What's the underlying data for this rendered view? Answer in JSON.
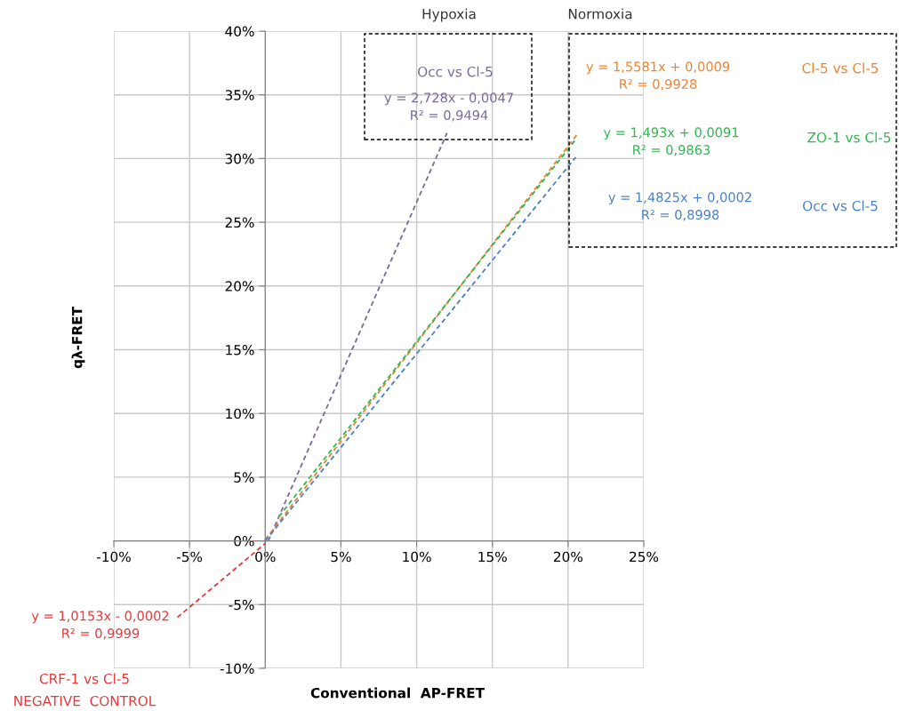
{
  "chart_data": {
    "type": "line",
    "xlabel": "Conventional  AP-FRET",
    "ylabel": "qλ-FRET",
    "xlim": [
      -10,
      25
    ],
    "ylim": [
      -10,
      40
    ],
    "xticks": [
      {
        "value": -10,
        "label": "-10%"
      },
      {
        "value": -5,
        "label": "-5%"
      },
      {
        "value": 0,
        "label": "0%"
      },
      {
        "value": 5,
        "label": "5%"
      },
      {
        "value": 10,
        "label": "10%"
      },
      {
        "value": 15,
        "label": "15%"
      },
      {
        "value": 20,
        "label": "20%"
      },
      {
        "value": 25,
        "label": "25%"
      }
    ],
    "yticks": [
      {
        "value": -10,
        "label": "-10%"
      },
      {
        "value": -5,
        "label": "-5%"
      },
      {
        "value": 0,
        "label": "0%"
      },
      {
        "value": 5,
        "label": "5%"
      },
      {
        "value": 10,
        "label": "10%"
      },
      {
        "value": 15,
        "label": "15%"
      },
      {
        "value": 20,
        "label": "20%"
      },
      {
        "value": 25,
        "label": "25%"
      },
      {
        "value": 30,
        "label": "30%"
      },
      {
        "value": 35,
        "label": "35%"
      },
      {
        "value": 40,
        "label": "40%"
      }
    ],
    "grid": true,
    "line_style": "dashed",
    "marker": "none",
    "series": [
      {
        "name": "Occ vs Cl-5",
        "color": "#7a6a9a",
        "x": [
          0.2,
          12.0
        ],
        "values": [
          0.0,
          32.0
        ]
      },
      {
        "name": "Cl-5 vs Cl-5",
        "color": "#f0822f",
        "x": [
          0,
          20.6
        ],
        "values": [
          0.1,
          31.9
        ]
      },
      {
        "name": "ZO-1 vs Cl-5",
        "color": "#2eb84e",
        "x": [
          0.9,
          20.5
        ],
        "values": [
          1.9,
          31.5
        ]
      },
      {
        "name": "Occ vs Cl-5",
        "color": "#4a80c8",
        "x": [
          0,
          20.5
        ],
        "values": [
          0.0,
          30.1
        ]
      },
      {
        "name": "CRF-1 vs Cl-5",
        "color": "#e8383a",
        "x": [
          -5.8,
          0
        ],
        "values": [
          -6.0,
          -0.2
        ]
      }
    ],
    "annotations": [
      "Hypoxia",
      "Normoxia",
      "y = 2,728x - 0,0047\nR² = 0,9494",
      "y = 1,5581x + 0,0009\nR² = 0,9928",
      "y = 1,493x + 0,0091\nR² = 0,9863",
      "y = 1,4825x + 0,0002\nR² = 0,8998",
      "y = 1,0153x - 0,0002\nR² = 0,9999",
      "NEGATIVE  CONTROL"
    ]
  }
}
